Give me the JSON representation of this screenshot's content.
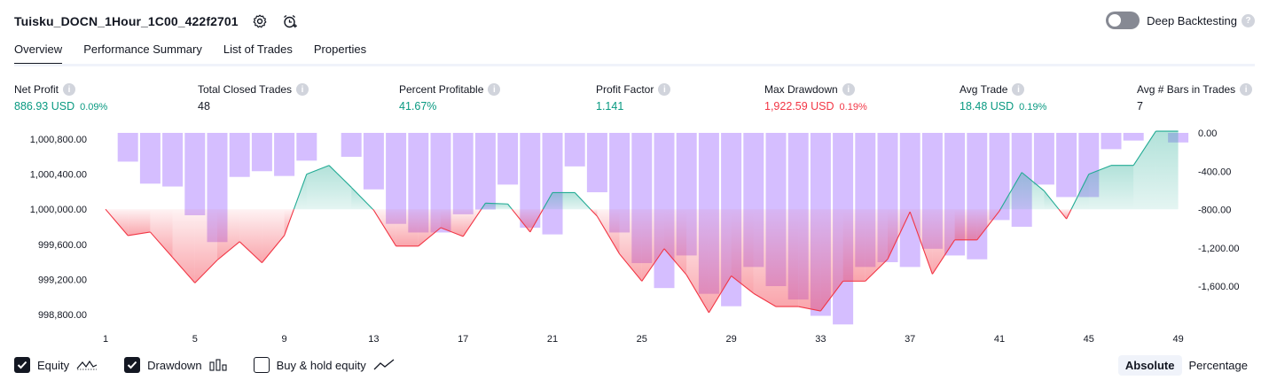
{
  "header": {
    "strategy_name": "Tuisku_DOCN_1Hour_1C00_422f2701",
    "settings_icon": "gear-icon",
    "alert_icon": "alarm-clock-plus-icon"
  },
  "deep_backtesting": {
    "label": "Deep Backtesting",
    "enabled": false,
    "help": "?"
  },
  "tabs": [
    {
      "label": "Overview",
      "active": true
    },
    {
      "label": "Performance Summary",
      "active": false
    },
    {
      "label": "List of Trades",
      "active": false
    },
    {
      "label": "Properties",
      "active": false
    }
  ],
  "metrics": {
    "info_glyph": "i",
    "net_profit": {
      "label": "Net Profit",
      "value": "886.93 USD",
      "pct": "0.09%"
    },
    "total_closed_trades": {
      "label": "Total Closed Trades",
      "value": "48"
    },
    "percent_profitable": {
      "label": "Percent Profitable",
      "value": "41.67%"
    },
    "profit_factor": {
      "label": "Profit Factor",
      "value": "1.141"
    },
    "max_drawdown": {
      "label": "Max Drawdown",
      "value": "1,922.59 USD",
      "pct": "0.19%"
    },
    "avg_trade": {
      "label": "Avg Trade",
      "value": "18.48 USD",
      "pct": "0.19%"
    },
    "avg_bars": {
      "label": "Avg # Bars in Trades",
      "value": "7"
    }
  },
  "colors": {
    "positive": "#089981",
    "negative": "#f23645",
    "drawdown_bar": "#b388ff",
    "equity_up_line": "#22ab94",
    "equity_down_line": "#f23645",
    "text": "#131722"
  },
  "chart_data": {
    "type": "area",
    "base_equity": 1000000,
    "x_ticks": [
      "1",
      "5",
      "9",
      "13",
      "17",
      "21",
      "25",
      "29",
      "33",
      "37",
      "41",
      "45",
      "49"
    ],
    "y_left_ticks": [
      "1,000,800.00",
      "1,000,400.00",
      "1,000,000.00",
      "999,600.00",
      "999,200.00",
      "998,800.00"
    ],
    "y_right_ticks": [
      "0.00",
      "-400.00",
      "-800.00",
      "-1,200.00",
      "-1,600.00"
    ],
    "ylim_left": [
      998700,
      1000880
    ],
    "ylim_right": [
      -2000,
      0
    ],
    "series": [
      {
        "name": "Equity",
        "x": [
          1,
          2,
          3,
          4,
          5,
          6,
          7,
          8,
          9,
          10,
          11,
          12,
          13,
          14,
          15,
          16,
          17,
          18,
          19,
          20,
          21,
          22,
          23,
          24,
          25,
          26,
          27,
          28,
          29,
          30,
          31,
          32,
          33,
          34,
          35,
          36,
          37,
          38,
          39,
          40,
          41,
          42,
          43,
          44,
          45,
          46,
          47,
          48,
          49
        ],
        "values": [
          1000000,
          999700,
          999740,
          999450,
          999160,
          999420,
          999630,
          999390,
          999700,
          1000400,
          1000500,
          1000250,
          999990,
          999580,
          999580,
          999790,
          999690,
          1000070,
          1000060,
          999740,
          1000190,
          1000190,
          999920,
          999490,
          999180,
          999550,
          999250,
          998820,
          999240,
          999040,
          998890,
          998890,
          998840,
          999180,
          999180,
          999430,
          999970,
          999260,
          999650,
          999650,
          999980,
          1000420,
          1000210,
          999890,
          1000400,
          1000500,
          1000500,
          1000890,
          1000890
        ]
      },
      {
        "name": "Drawdown",
        "x": [
          1,
          2,
          3,
          4,
          5,
          6,
          7,
          8,
          9,
          10,
          11,
          12,
          13,
          14,
          15,
          16,
          17,
          18,
          19,
          20,
          21,
          22,
          23,
          24,
          25,
          26,
          27,
          28,
          29,
          30,
          31,
          32,
          33,
          34,
          35,
          36,
          37,
          38,
          39,
          40,
          41,
          42,
          43,
          44,
          45,
          46,
          47,
          48,
          49
        ],
        "values": [
          0,
          -300,
          -530,
          -560,
          -860,
          -1140,
          -460,
          -400,
          -450,
          -290,
          0,
          -250,
          -590,
          -950,
          -1040,
          -1040,
          -850,
          -800,
          -540,
          -990,
          -1060,
          -350,
          -620,
          -1040,
          -1360,
          -1620,
          -1280,
          -1680,
          -1810,
          -1400,
          -1600,
          -1740,
          -1910,
          -2000,
          -1400,
          -1350,
          -1400,
          -1210,
          -1280,
          -1320,
          -910,
          -980,
          -540,
          -670,
          -670,
          -170,
          -80,
          0,
          -100
        ]
      }
    ]
  },
  "legend": {
    "equity": {
      "label": "Equity",
      "checked": true
    },
    "drawdown": {
      "label": "Drawdown",
      "checked": true
    },
    "buy_hold": {
      "label": "Buy & hold equity",
      "checked": false
    }
  },
  "modes": [
    {
      "label": "Absolute",
      "active": true
    },
    {
      "label": "Percentage",
      "active": false
    }
  ]
}
